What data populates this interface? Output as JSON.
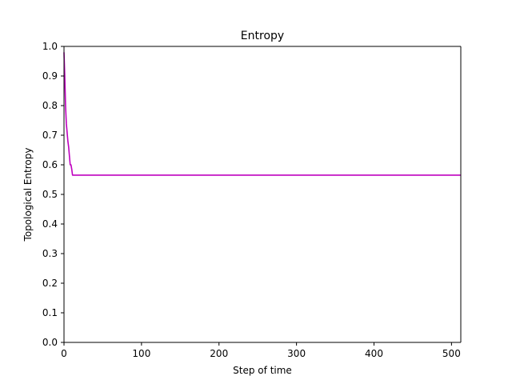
{
  "chart_data": {
    "type": "line",
    "title": "Entropy",
    "xlabel": "Step of time",
    "ylabel": "Topological Entropy",
    "xlim": [
      0,
      512
    ],
    "ylim": [
      0.0,
      1.0
    ],
    "grid": false,
    "x_ticks": [
      0,
      100,
      200,
      300,
      400,
      500
    ],
    "x_tick_labels": [
      "0",
      "100",
      "200",
      "300",
      "400",
      "500"
    ],
    "y_ticks": [
      0.0,
      0.1,
      0.2,
      0.3,
      0.4,
      0.5,
      0.6,
      0.7,
      0.8,
      0.9,
      1.0
    ],
    "y_tick_labels": [
      "0.0",
      "0.1",
      "0.2",
      "0.3",
      "0.4",
      "0.5",
      "0.6",
      "0.7",
      "0.8",
      "0.9",
      "1.0"
    ],
    "series": [
      {
        "name": "Topological Entropy",
        "color": "#bf00bf",
        "x": [
          0,
          1,
          2,
          3,
          4,
          5,
          6,
          7,
          8,
          9,
          10,
          11,
          12,
          20,
          50,
          100,
          200,
          300,
          400,
          512
        ],
        "y": [
          0.98,
          0.9,
          0.8,
          0.74,
          0.71,
          0.68,
          0.66,
          0.63,
          0.6,
          0.6,
          0.585,
          0.565,
          0.565,
          0.565,
          0.565,
          0.565,
          0.565,
          0.565,
          0.565,
          0.565
        ]
      }
    ]
  }
}
